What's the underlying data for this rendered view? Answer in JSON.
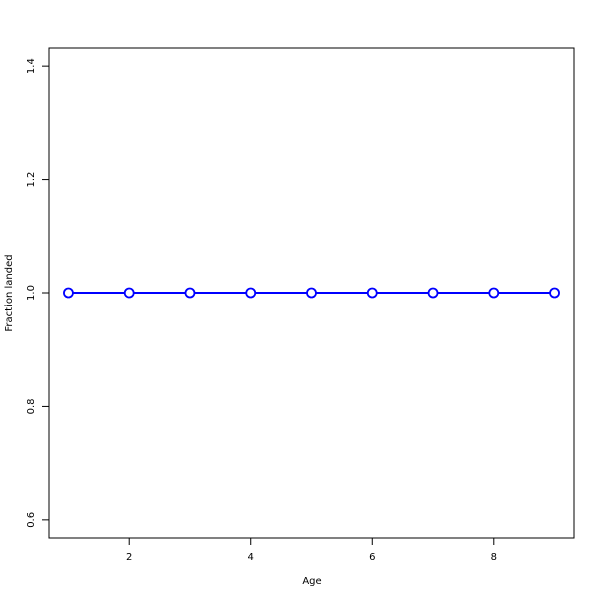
{
  "chart_data": {
    "type": "line",
    "title": "",
    "xlabel": "Age",
    "ylabel": "Fraction landed",
    "x": [
      1,
      2,
      3,
      4,
      5,
      6,
      7,
      8,
      9
    ],
    "values": [
      1,
      1,
      1,
      1,
      1,
      1,
      1,
      1,
      1
    ],
    "xlim": [
      0.68,
      9.32
    ],
    "ylim": [
      0.568,
      1.432
    ],
    "xticks": [
      2,
      4,
      6,
      8
    ],
    "yticks": [
      "0.6",
      "0.8",
      "1.0",
      "1.2",
      "1.4"
    ],
    "grid": false,
    "line_color": "#0000ff",
    "marker": "open-circle",
    "marker_fill": "#ffffff"
  }
}
